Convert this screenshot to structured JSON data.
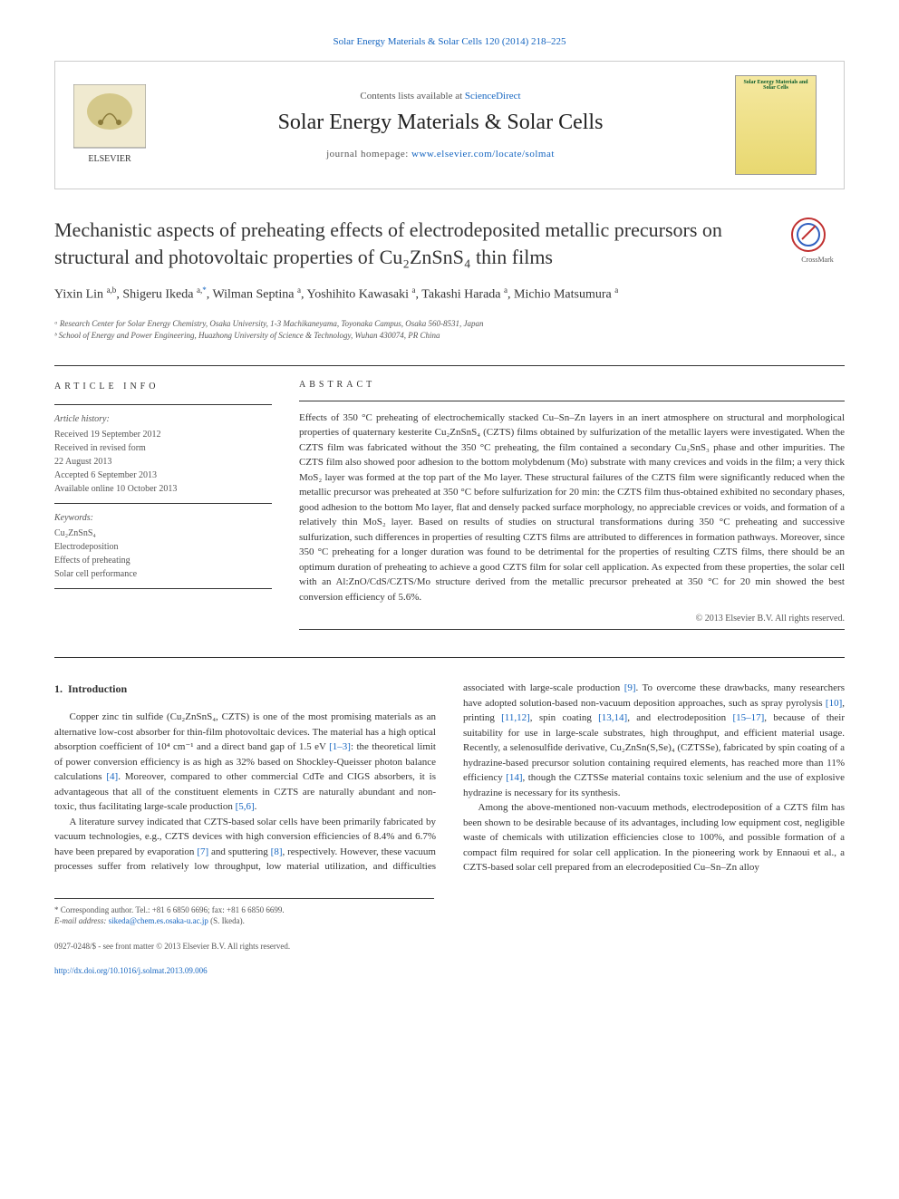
{
  "header_citation": "Solar Energy Materials & Solar Cells 120 (2014) 218–225",
  "banner": {
    "contents_prefix": "Contents lists available at ",
    "contents_link": "ScienceDirect",
    "journal_name": "Solar Energy Materials & Solar Cells",
    "homepage_prefix": "journal homepage: ",
    "homepage_link": "www.elsevier.com/locate/solmat",
    "cover_text": "Solar Energy Materials and Solar Cells"
  },
  "title": "Mechanistic aspects of preheating effects of electrodeposited metallic precursors on structural and photovoltaic properties of Cu₂ZnSnS₄ thin films",
  "crossmark_label": "CrossMark",
  "authors_html": "Yixin Lin <sup>a,b</sup>, Shigeru Ikeda <sup>a,</sup><sup class=\"asterisk\">*</sup>, Wilman Septina <sup>a</sup>, Yoshihito Kawasaki <sup>a</sup>, Takashi Harada <sup>a</sup>, Michio Matsumura <sup>a</sup>",
  "affiliations": [
    "ᵃ Research Center for Solar Energy Chemistry, Osaka University, 1-3 Machikaneyama, Toyonaka Campus, Osaka 560-8531, Japan",
    "ᵇ School of Energy and Power Engineering, Huazhong University of Science & Technology, Wuhan 430074, PR China"
  ],
  "article_info": {
    "heading": "ARTICLE INFO",
    "history_label": "Article history:",
    "history": [
      "Received 19 September 2012",
      "Received in revised form",
      "22 August 2013",
      "Accepted 6 September 2013",
      "Available online 10 October 2013"
    ],
    "keywords_label": "Keywords:",
    "keywords": [
      "Cu₂ZnSnS₄",
      "Electrodeposition",
      "Effects of preheating",
      "Solar cell performance"
    ]
  },
  "abstract": {
    "heading": "ABSTRACT",
    "text": "Effects of 350 °C preheating of electrochemically stacked Cu–Sn–Zn layers in an inert atmosphere on structural and morphological properties of quaternary kesterite Cu₂ZnSnS₄ (CZTS) films obtained by sulfurization of the metallic layers were investigated. When the CZTS film was fabricated without the 350 °C preheating, the film contained a secondary Cu₂SnS₃ phase and other impurities. The CZTS film also showed poor adhesion to the bottom molybdenum (Mo) substrate with many crevices and voids in the film; a very thick MoS₂ layer was formed at the top part of the Mo layer. These structural failures of the CZTS film were significantly reduced when the metallic precursor was preheated at 350 °C before sulfurization for 20 min: the CZTS film thus-obtained exhibited no secondary phases, good adhesion to the bottom Mo layer, flat and densely packed surface morphology, no appreciable crevices or voids, and formation of a relatively thin MoS₂ layer. Based on results of studies on structural transformations during 350 °C preheating and successive sulfurization, such differences in properties of resulting CZTS films are attributed to differences in formation pathways. Moreover, since 350 °C preheating for a longer duration was found to be detrimental for the properties of resulting CZTS films, there should be an optimum duration of preheating to achieve a good CZTS film for solar cell application. As expected from these properties, the solar cell with an Al:ZnO/CdS/CZTS/Mo structure derived from the metallic precursor preheated at 350 °C for 20 min showed the best conversion efficiency of 5.6%.",
    "copyright": "© 2013 Elsevier B.V. All rights reserved."
  },
  "body": {
    "section_number": "1.",
    "section_title": "Introduction",
    "paragraphs": [
      "Copper zinc tin sulfide (Cu₂ZnSnS₄, CZTS) is one of the most promising materials as an alternative low-cost absorber for thin-film photovoltaic devices. The material has a high optical absorption coefficient of 10⁴ cm⁻¹ and a direct band gap of 1.5 eV <a class=\"ref\">[1–3]</a>: the theoretical limit of power conversion efficiency is as high as 32% based on Shockley-Queisser photon balance calculations <a class=\"ref\">[4]</a>. Moreover, compared to other commercial CdTe and CIGS absorbers, it is advantageous that all of the constituent elements in CZTS are naturally abundant and non-toxic, thus facilitating large-scale production <a class=\"ref\">[5,6]</a>.",
      "A literature survey indicated that CZTS-based solar cells have been primarily fabricated by vacuum technologies, e.g., CZTS devices with high conversion efficiencies of 8.4% and 6.7% have been prepared by evaporation <a class=\"ref\">[7]</a> and sputtering <a class=\"ref\">[8]</a>, respectively. However, these vacuum processes suffer from relatively low throughput, low material utilization, and difficulties associated with large-scale production <a class=\"ref\">[9]</a>. To overcome these drawbacks, many researchers have adopted solution-based non-vacuum deposition approaches, such as spray pyrolysis <a class=\"ref\">[10]</a>, printing <a class=\"ref\">[11,12]</a>, spin coating <a class=\"ref\">[13,14]</a>, and electrodeposition <a class=\"ref\">[15–17]</a>, because of their suitability for use in large-scale substrates, high throughput, and efficient material usage. Recently, a selenosulfide derivative, Cu₂ZnSn(S,Se)₄ (CZTSSe), fabricated by spin coating of a hydrazine-based precursor solution containing required elements, has reached more than 11% efficiency <a class=\"ref\">[14]</a>, though the CZTSSe material contains toxic selenium and the use of explosive hydrazine is necessary for its synthesis.",
      "Among the above-mentioned non-vacuum methods, electrodeposition of a CZTS film has been shown to be desirable because of its advantages, including low equipment cost, negligible waste of chemicals with utilization efficiencies close to 100%, and possible formation of a compact film required for solar cell application. In the pioneering work by Ennaoui et al., a CZTS-based solar cell prepared from an elecrodepositied Cu–Sn–Zn alloy"
    ]
  },
  "footnote": {
    "corr_author": "* Corresponding author. Tel.: +81 6 6850 6696; fax: +81 6 6850 6699.",
    "email_label": "E-mail address: ",
    "email": "sikeda@chem.es.osaka-u.ac.jp",
    "email_suffix": " (S. Ikeda)."
  },
  "footer": {
    "issn": "0927-0248/$ - see front matter © 2013 Elsevier B.V. All rights reserved.",
    "doi": "http://dx.doi.org/10.1016/j.solmat.2013.09.006"
  },
  "colors": {
    "link": "#1565c0",
    "text": "#333333",
    "muted": "#555555",
    "border": "#cccccc"
  }
}
